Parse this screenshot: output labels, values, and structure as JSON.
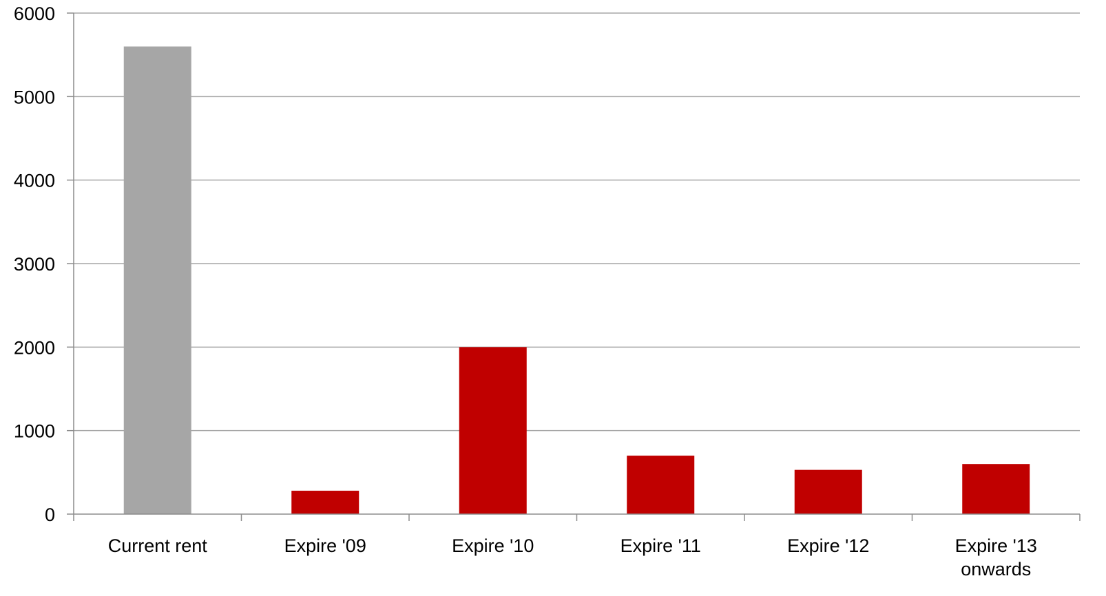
{
  "chart_data": {
    "type": "bar",
    "title": "",
    "xlabel": "",
    "ylabel": "",
    "ylim": [
      0,
      6000
    ],
    "yticks": [
      0,
      1000,
      2000,
      3000,
      4000,
      5000,
      6000
    ],
    "grid": true,
    "legend": "none",
    "categories": [
      [
        "Current rent"
      ],
      [
        "Expire '09"
      ],
      [
        "Expire '10"
      ],
      [
        "Expire '11"
      ],
      [
        "Expire '12"
      ],
      [
        "Expire '13",
        "onwards"
      ]
    ],
    "values": [
      5600,
      280,
      2000,
      700,
      530,
      600
    ],
    "bar_colors": [
      "#a6a6a6",
      "#c00000",
      "#c00000",
      "#c00000",
      "#c00000",
      "#c00000"
    ]
  }
}
